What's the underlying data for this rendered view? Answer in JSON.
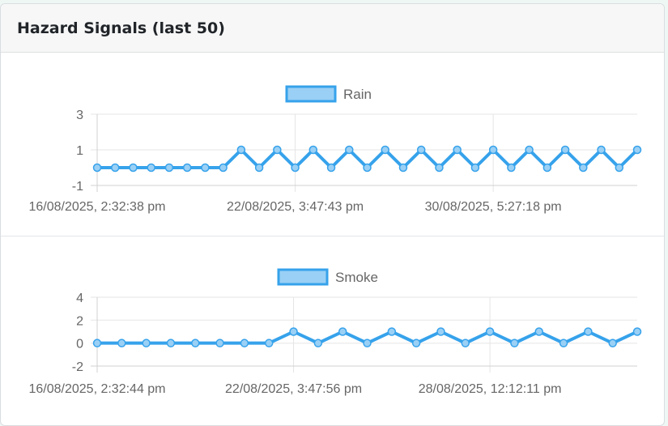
{
  "card": {
    "title": "Hazard Signals (last 50)"
  },
  "chart_data": [
    {
      "type": "line",
      "legend": "Rain",
      "x_tick_labels": [
        "16/08/2025, 2:32:38 pm",
        "22/08/2025, 3:47:43 pm",
        "30/08/2025, 5:27:18 pm"
      ],
      "y_ticks": [
        3,
        1,
        -1
      ],
      "ylim": [
        -1,
        3
      ],
      "values": [
        0,
        0,
        0,
        0,
        0,
        0,
        0,
        0,
        1,
        0,
        1,
        0,
        1,
        0,
        1,
        0,
        1,
        0,
        1,
        0,
        1,
        0,
        1,
        0,
        1,
        0,
        1,
        0,
        1,
        0,
        1
      ],
      "color": "#36a2eb"
    },
    {
      "type": "line",
      "legend": "Smoke",
      "x_tick_labels": [
        "16/08/2025, 2:32:44 pm",
        "22/08/2025, 3:47:56 pm",
        "28/08/2025, 12:12:11 pm"
      ],
      "y_ticks": [
        4,
        2,
        0,
        -2
      ],
      "ylim": [
        -2,
        4
      ],
      "values": [
        0,
        0,
        0,
        0,
        0,
        0,
        0,
        0,
        1,
        0,
        1,
        0,
        1,
        0,
        1,
        0,
        1,
        0,
        1,
        0,
        1,
        0,
        1
      ],
      "color": "#36a2eb"
    }
  ]
}
